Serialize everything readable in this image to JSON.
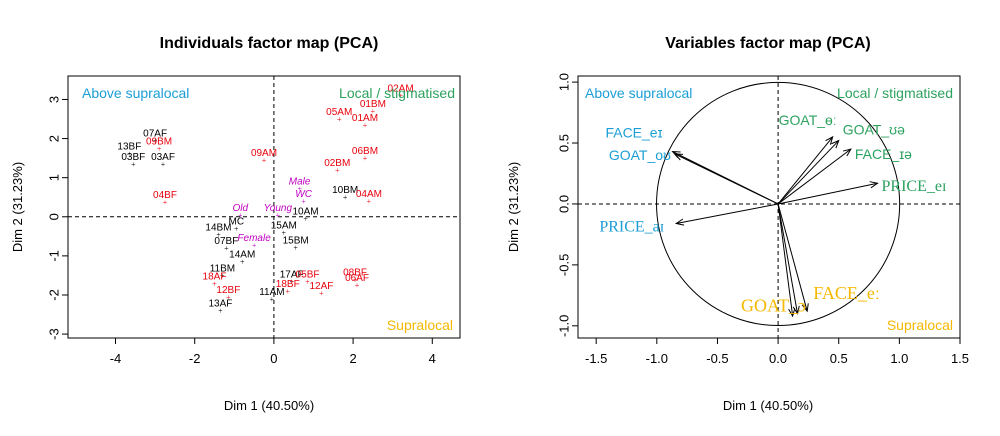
{
  "colors": {
    "black": "#000000",
    "red": "#e8000b",
    "magenta": "#c000c0",
    "blue": "#1b9ed6",
    "green": "#2ca25f",
    "orange": "#f5b800"
  },
  "chart_data": [
    {
      "type": "scatter",
      "title": "Individuals factor map (PCA)",
      "xlabel": "Dim 1 (40.50%)",
      "ylabel": "Dim 2 (31.23%)",
      "xlim": [
        -5.2,
        4.7
      ],
      "ylim": [
        -3.1,
        3.6
      ],
      "xticks": [
        "-4",
        "-2",
        "0",
        "2",
        "4"
      ],
      "yticks": [
        "-3",
        "-2",
        "-1",
        "0",
        "1",
        "2",
        "3"
      ],
      "quadrant_labels": {
        "top_left": "Above supralocal",
        "top_right": "Local / stigmatised",
        "bottom_right": "Supralocal"
      },
      "points": [
        {
          "label": "07AF",
          "x": -3.0,
          "y": 1.95,
          "color": "black"
        },
        {
          "label": "13BF",
          "x": -3.65,
          "y": 1.62,
          "color": "black"
        },
        {
          "label": "09BM",
          "x": -2.9,
          "y": 1.75,
          "color": "red"
        },
        {
          "label": "03BF",
          "x": -3.55,
          "y": 1.35,
          "color": "black"
        },
        {
          "label": "03AF",
          "x": -2.8,
          "y": 1.35,
          "color": "black"
        },
        {
          "label": "04BF",
          "x": -2.75,
          "y": 0.38,
          "color": "red"
        },
        {
          "label": "02AM",
          "x": 3.2,
          "y": 3.1,
          "color": "red"
        },
        {
          "label": "01BM",
          "x": 2.5,
          "y": 2.7,
          "color": "red"
        },
        {
          "label": "05AM",
          "x": 1.65,
          "y": 2.5,
          "color": "red"
        },
        {
          "label": "01AM",
          "x": 2.3,
          "y": 2.35,
          "color": "red"
        },
        {
          "label": "09AM",
          "x": -0.25,
          "y": 1.45,
          "color": "red"
        },
        {
          "label": "06BM",
          "x": 2.3,
          "y": 1.5,
          "color": "red"
        },
        {
          "label": "02BM",
          "x": 1.6,
          "y": 1.2,
          "color": "red"
        },
        {
          "label": "Male",
          "x": 0.65,
          "y": 0.72,
          "color": "magenta"
        },
        {
          "label": "WC",
          "x": 0.75,
          "y": 0.4,
          "color": "magenta"
        },
        {
          "label": "10BM",
          "x": 1.8,
          "y": 0.5,
          "color": "black"
        },
        {
          "label": "04AM",
          "x": 2.4,
          "y": 0.4,
          "color": "red"
        },
        {
          "label": "Old",
          "x": -0.85,
          "y": 0.05,
          "color": "magenta"
        },
        {
          "label": "Young",
          "x": 0.1,
          "y": 0.05,
          "color": "magenta"
        },
        {
          "label": "10AM",
          "x": 0.8,
          "y": -0.05,
          "color": "black"
        },
        {
          "label": "14BM",
          "x": -1.4,
          "y": -0.45,
          "color": "black"
        },
        {
          "label": "MC",
          "x": -0.95,
          "y": -0.3,
          "color": "black"
        },
        {
          "label": "15AM",
          "x": 0.25,
          "y": -0.4,
          "color": "black"
        },
        {
          "label": "07BF",
          "x": -1.2,
          "y": -0.8,
          "color": "black"
        },
        {
          "label": "Female",
          "x": -0.5,
          "y": -0.72,
          "color": "magenta"
        },
        {
          "label": "15BM",
          "x": 0.55,
          "y": -0.78,
          "color": "black"
        },
        {
          "label": "14AM",
          "x": -0.8,
          "y": -1.15,
          "color": "black"
        },
        {
          "label": "11BM",
          "x": -1.3,
          "y": -1.5,
          "color": "black"
        },
        {
          "label": "17AF",
          "x": 0.45,
          "y": -1.65,
          "color": "black"
        },
        {
          "label": "05BF",
          "x": 0.85,
          "y": -1.65,
          "color": "red"
        },
        {
          "label": "08BF",
          "x": 2.05,
          "y": -1.6,
          "color": "red"
        },
        {
          "label": "18AF",
          "x": -1.5,
          "y": -1.7,
          "color": "red"
        },
        {
          "label": "06AF",
          "x": 2.1,
          "y": -1.75,
          "color": "red"
        },
        {
          "label": "18BF",
          "x": 0.35,
          "y": -1.9,
          "color": "red"
        },
        {
          "label": "12AF",
          "x": 1.2,
          "y": -1.95,
          "color": "red"
        },
        {
          "label": "12BF",
          "x": -1.15,
          "y": -2.05,
          "color": "red"
        },
        {
          "label": "11AM",
          "x": -0.05,
          "y": -2.1,
          "color": "black"
        },
        {
          "label": "13AF",
          "x": -1.35,
          "y": -2.4,
          "color": "black"
        }
      ]
    },
    {
      "type": "scatter",
      "title": "Variables factor map (PCA)",
      "xlabel": "Dim 1 (40.50%)",
      "ylabel": "Dim 2 (31.23%)",
      "xlim": [
        -1.65,
        1.5
      ],
      "ylim": [
        -1.1,
        1.05
      ],
      "xticks": [
        "-1.5",
        "-1.0",
        "-0.5",
        "0.0",
        "0.5",
        "1.0",
        "1.5"
      ],
      "yticks": [
        "-1.0",
        "-0.5",
        "0.0",
        "0.5",
        "1.0"
      ],
      "quadrant_labels": {
        "top_left": "Above supralocal",
        "top_right": "Local / stigmatised",
        "bottom_right": "Supralocal"
      },
      "arrows": [
        {
          "label": "FACE_eɪ",
          "x": -0.87,
          "y": 0.43,
          "color": "blue"
        },
        {
          "label": "GOAT_oʊ",
          "x": -0.85,
          "y": 0.41,
          "color": "blue"
        },
        {
          "label": "PRICE_aɪ",
          "x": -0.84,
          "y": -0.16,
          "color": "blue"
        },
        {
          "label": "GOAT_ɵː",
          "x": 0.45,
          "y": 0.55,
          "color": "green"
        },
        {
          "label": "GOAT_ʊə",
          "x": 0.5,
          "y": 0.52,
          "color": "green"
        },
        {
          "label": "FACE_ɪə",
          "x": 0.6,
          "y": 0.45,
          "color": "green"
        },
        {
          "label": "PRICE_eɪ",
          "x": 0.82,
          "y": 0.17,
          "color": "green"
        },
        {
          "label": "GOAT_ɔ",
          "x": 0.16,
          "y": -0.9,
          "color": "orange"
        },
        {
          "label": "GOAT_ɔː",
          "x": 0.12,
          "y": -0.92,
          "color": "orange"
        },
        {
          "label": "FACE_eː",
          "x": 0.24,
          "y": -0.88,
          "color": "orange"
        }
      ]
    }
  ]
}
